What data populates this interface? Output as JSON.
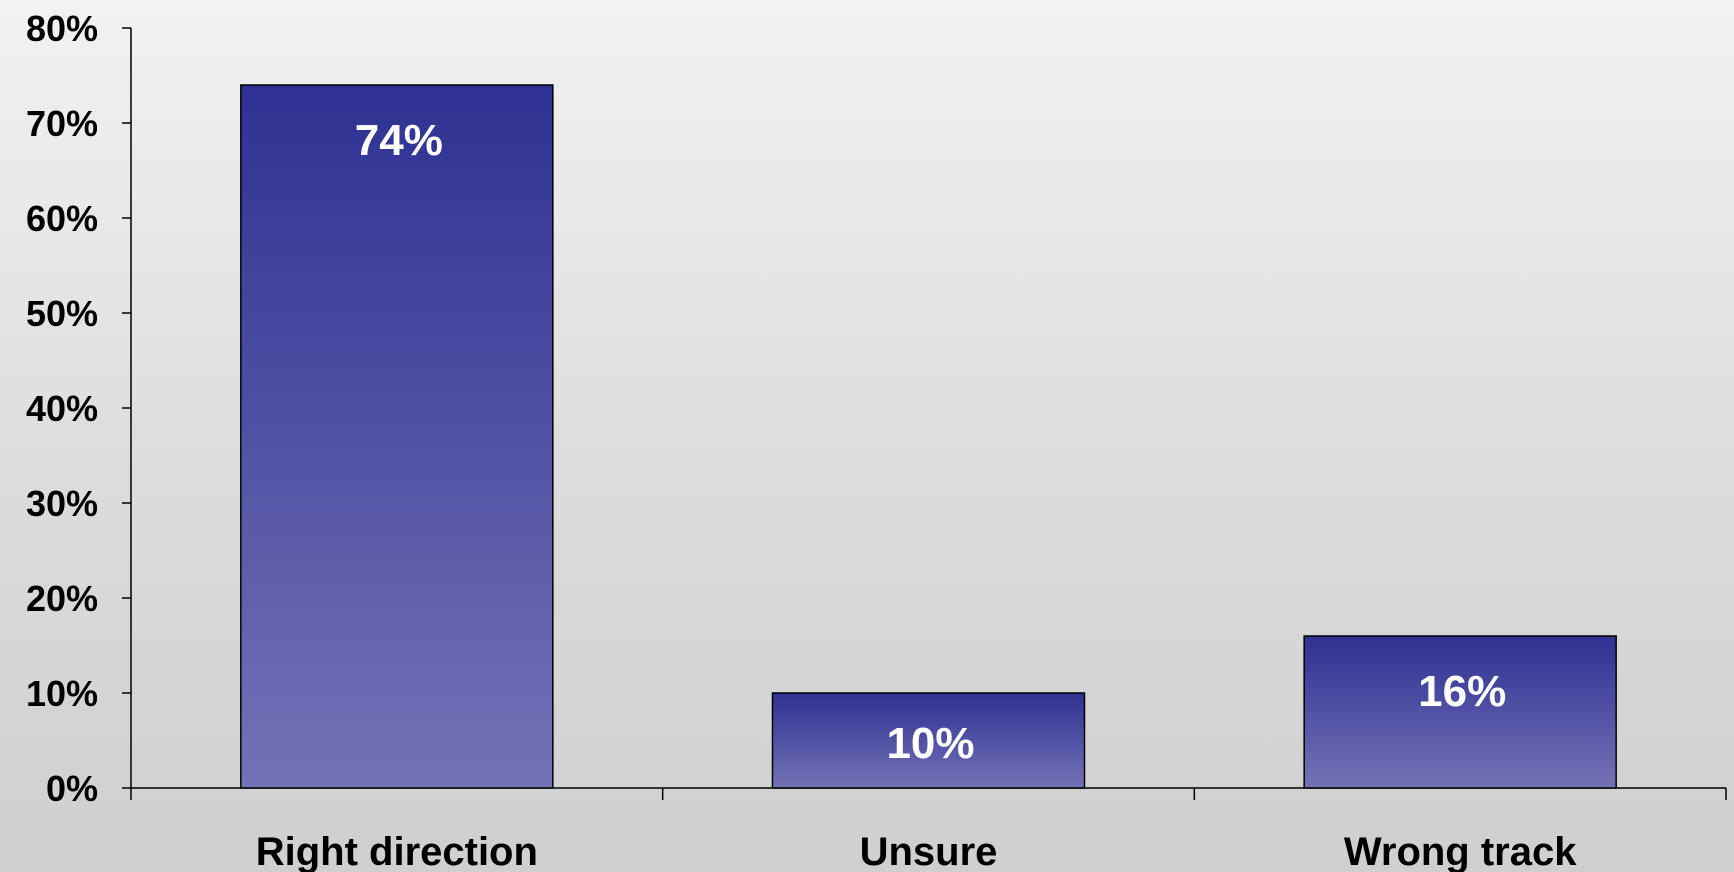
{
  "chart_data": {
    "type": "bar",
    "title": "",
    "xlabel": "",
    "ylabel": "",
    "categories": [
      "Right direction",
      "Unsure",
      "Wrong track"
    ],
    "values": [
      74,
      10,
      16
    ],
    "data_labels": [
      "74%",
      "10%",
      "16%"
    ],
    "ylim": [
      0,
      80
    ],
    "yticks": [
      0,
      10,
      20,
      30,
      40,
      50,
      60,
      70,
      80
    ],
    "ytick_labels": [
      "0%",
      "10%",
      "20%",
      "30%",
      "40%",
      "50%",
      "60%",
      "70%",
      "80%"
    ],
    "grid": false,
    "legend": "none",
    "colors": {
      "bar_top": "#2e3192",
      "bar_bottom": "#7472b6",
      "bar_outline": "#000000",
      "data_label": "#ffffff",
      "axis": "#000000"
    }
  }
}
